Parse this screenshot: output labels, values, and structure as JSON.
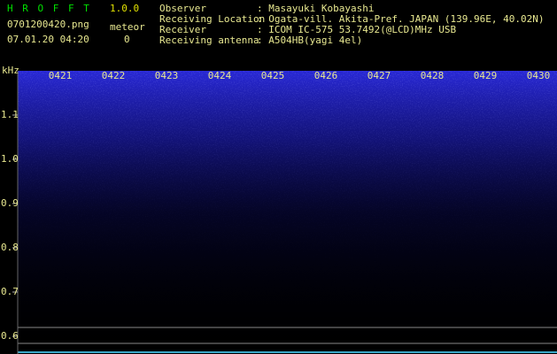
{
  "header": {
    "app_name": "H R O F F T",
    "version": "1.0.0",
    "file_name": "0701200420.png",
    "date_time": "07.01.20 04:20",
    "meteor_label": "meteor",
    "meteor_count": "0"
  },
  "info": [
    {
      "label": "Observer",
      "value": ": Masayuki Kobayashi"
    },
    {
      "label": "Receiving Location",
      "value": ": Ogata-vill. Akita-Pref. JAPAN (139.96E, 40.02N)"
    },
    {
      "label": "Receiver",
      "value": ": ICOM IC-575 53.7492(@LCD)MHz USB"
    },
    {
      "label": "Receiving antenna",
      "value": ": A504HB(yagi 4el)"
    }
  ],
  "plot": {
    "y_label": "kHz",
    "ylim": [
      0.56,
      1.2
    ],
    "yticks": [
      {
        "value": 1.1,
        "label": "1.1"
      },
      {
        "value": 1.0,
        "label": "1.0"
      },
      {
        "value": 0.9,
        "label": "0.9"
      },
      {
        "value": 0.8,
        "label": "0.8"
      },
      {
        "value": 0.7,
        "label": "0.7"
      },
      {
        "value": 0.6,
        "label": "0.6"
      }
    ],
    "time_labels": [
      "0421",
      "0422",
      "0423",
      "0424",
      "0425",
      "0426",
      "0427",
      "0428",
      "0429",
      "0430"
    ]
  }
}
